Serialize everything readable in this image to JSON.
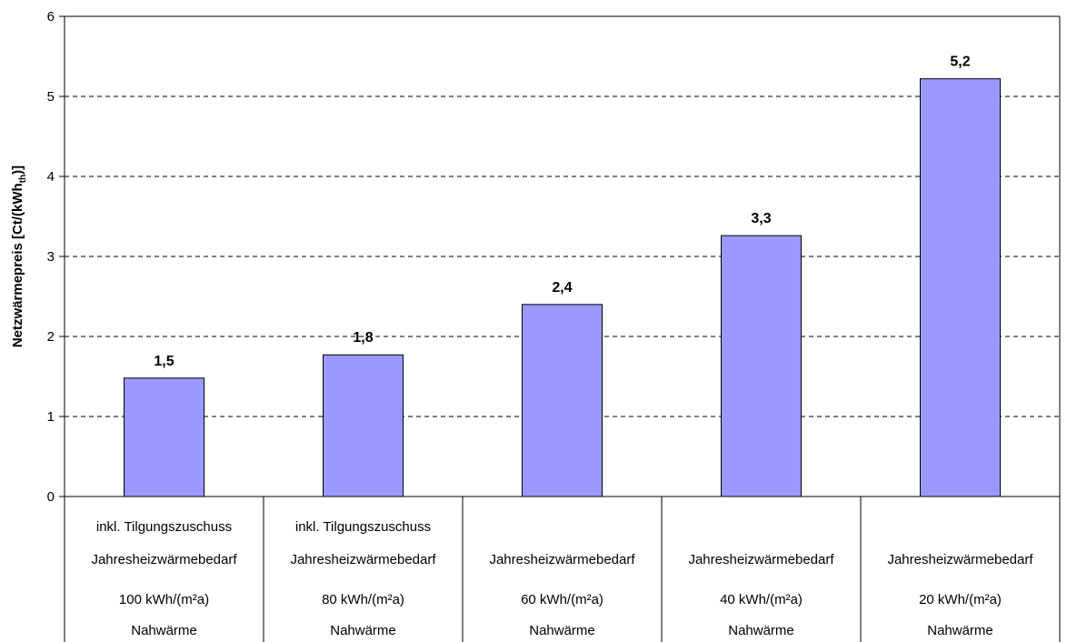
{
  "chart_data": {
    "type": "bar",
    "ylabel_main": "Netzwärmepreis [Ct/(kWh",
    "ylabel_sub": "th",
    "ylabel_end": ")]",
    "ylim": [
      0,
      6
    ],
    "yticks": [
      "0",
      "1",
      "2",
      "3",
      "4",
      "5",
      "6"
    ],
    "grid": "horizontal dashed",
    "bar_color": "#9999ff",
    "values": [
      1.48,
      1.77,
      2.4,
      3.26,
      5.22
    ],
    "value_labels": [
      "1,5",
      "1,8",
      "2,4",
      "3,3",
      "5,2"
    ],
    "categories": [
      [
        "inkl. Tilgungszuschuss",
        "Jahresheizwärmebedarf",
        "100 kWh/(m²a)",
        "Nahwärme"
      ],
      [
        "inkl. Tilgungszuschuss",
        "Jahresheizwärmebedarf",
        "80 kWh/(m²a)",
        "Nahwärme"
      ],
      [
        "",
        "Jahresheizwärmebedarf",
        "60 kWh/(m²a)",
        "Nahwärme"
      ],
      [
        "",
        "Jahresheizwärmebedarf",
        "40 kWh/(m²a)",
        "Nahwärme"
      ],
      [
        "",
        "Jahresheizwärmebedarf",
        "20 kWh/(m²a)",
        "Nahwärme"
      ]
    ]
  }
}
